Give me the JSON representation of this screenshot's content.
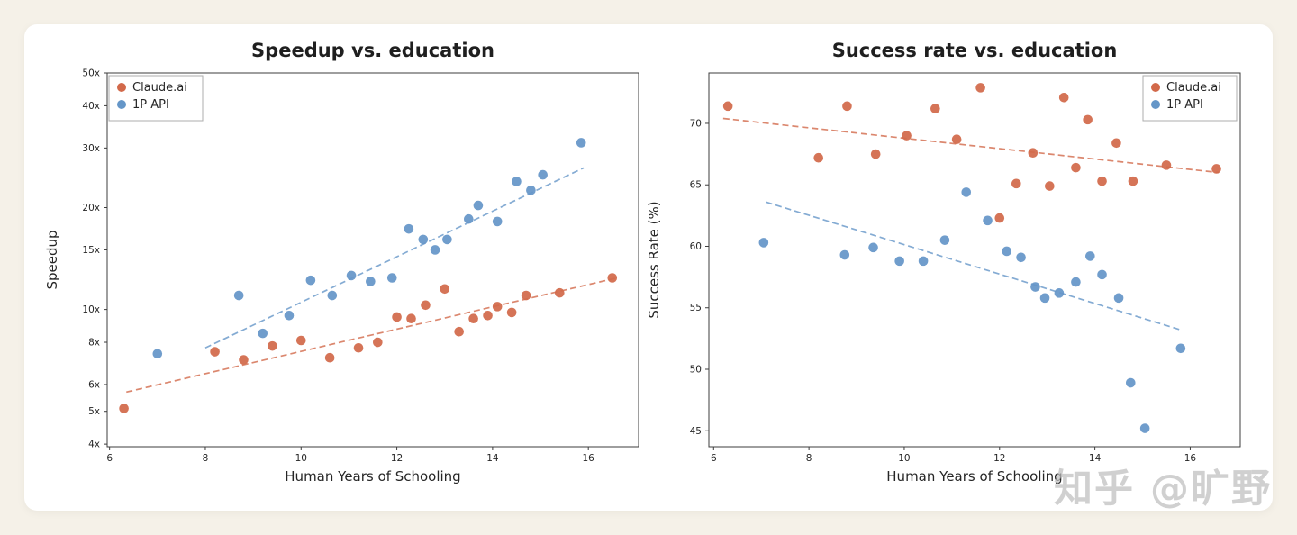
{
  "page": {
    "background_color": "#f5f1e8",
    "card_color": "#ffffff"
  },
  "watermark": {
    "text": "知乎 @旷野",
    "color": "#bebebe"
  },
  "colors": {
    "claude_ai": "#d2694a",
    "one_p_api": "#6596c8"
  },
  "chart_data": [
    {
      "type": "scatter",
      "title": "Speedup vs. education",
      "xlabel": "Human Years of Schooling",
      "ylabel": "Speedup",
      "x_ticks": [
        6,
        8,
        10,
        12,
        14,
        16
      ],
      "xlim": [
        5.95,
        17.05
      ],
      "y_scale": "log",
      "ylim": [
        3.93,
        50
      ],
      "y_ticks": [
        4,
        5,
        6,
        8,
        10,
        15,
        20,
        30,
        40,
        50
      ],
      "y_tick_labels": [
        "4x",
        "5x",
        "6x",
        "8x",
        "10x",
        "15x",
        "20x",
        "30x",
        "40x",
        "50x"
      ],
      "grid": false,
      "legend": {
        "position": "top-left",
        "entries": [
          "Claude.ai",
          "1P API"
        ]
      },
      "series": [
        {
          "name": "Claude.ai",
          "color": "#d2694a",
          "trend": [
            [
              6.35,
              5.7
            ],
            [
              16.6,
              12.4
            ]
          ],
          "points": [
            [
              6.3,
              5.1
            ],
            [
              8.2,
              7.5
            ],
            [
              8.8,
              7.1
            ],
            [
              9.4,
              7.8
            ],
            [
              10.0,
              8.1
            ],
            [
              10.6,
              7.2
            ],
            [
              11.2,
              7.7
            ],
            [
              11.6,
              8.0
            ],
            [
              12.0,
              9.5
            ],
            [
              12.3,
              9.4
            ],
            [
              12.6,
              10.3
            ],
            [
              13.0,
              11.5
            ],
            [
              13.3,
              8.6
            ],
            [
              13.6,
              9.4
            ],
            [
              13.9,
              9.6
            ],
            [
              14.1,
              10.2
            ],
            [
              14.4,
              9.8
            ],
            [
              14.7,
              11.0
            ],
            [
              15.4,
              11.2
            ],
            [
              16.5,
              12.4
            ]
          ]
        },
        {
          "name": "1P API",
          "color": "#6596c8",
          "trend": [
            [
              8.0,
              7.7
            ],
            [
              15.9,
              26.2
            ]
          ],
          "points": [
            [
              7.0,
              7.4
            ],
            [
              8.7,
              11.0
            ],
            [
              9.2,
              8.5
            ],
            [
              9.75,
              9.6
            ],
            [
              10.2,
              12.2
            ],
            [
              10.65,
              11.0
            ],
            [
              11.05,
              12.6
            ],
            [
              11.45,
              12.1
            ],
            [
              11.9,
              12.4
            ],
            [
              12.25,
              17.3
            ],
            [
              12.55,
              16.1
            ],
            [
              12.8,
              15.0
            ],
            [
              13.05,
              16.1
            ],
            [
              13.5,
              18.5
            ],
            [
              13.7,
              20.3
            ],
            [
              14.1,
              18.2
            ],
            [
              14.5,
              23.9
            ],
            [
              14.8,
              22.5
            ],
            [
              15.05,
              25.0
            ],
            [
              15.85,
              31.1
            ]
          ]
        }
      ]
    },
    {
      "type": "scatter",
      "title": "Success rate vs. education",
      "xlabel": "Human Years of Schooling",
      "ylabel": "Success Rate (%)",
      "x_ticks": [
        6,
        8,
        10,
        12,
        14,
        16
      ],
      "xlim": [
        5.9,
        17.05
      ],
      "y_scale": "linear",
      "ylim": [
        43.7,
        74.1
      ],
      "y_ticks": [
        45,
        50,
        55,
        60,
        65,
        70
      ],
      "y_tick_labels": [
        "45",
        "50",
        "55",
        "60",
        "65",
        "70"
      ],
      "grid": false,
      "legend": {
        "position": "top-right",
        "entries": [
          "Claude.ai",
          "1P API"
        ]
      },
      "series": [
        {
          "name": "Claude.ai",
          "color": "#d2694a",
          "trend": [
            [
              6.2,
              70.4
            ],
            [
              16.6,
              66.0
            ]
          ],
          "points": [
            [
              6.3,
              71.4
            ],
            [
              8.2,
              67.2
            ],
            [
              8.8,
              71.4
            ],
            [
              9.4,
              67.5
            ],
            [
              10.05,
              69.0
            ],
            [
              10.65,
              71.2
            ],
            [
              11.1,
              68.7
            ],
            [
              11.6,
              72.9
            ],
            [
              12.0,
              62.3
            ],
            [
              12.35,
              65.1
            ],
            [
              12.7,
              67.6
            ],
            [
              13.05,
              64.9
            ],
            [
              13.35,
              72.1
            ],
            [
              13.6,
              66.4
            ],
            [
              13.85,
              70.3
            ],
            [
              14.15,
              65.3
            ],
            [
              14.45,
              68.4
            ],
            [
              14.8,
              65.3
            ],
            [
              15.5,
              66.6
            ],
            [
              16.55,
              66.3
            ]
          ]
        },
        {
          "name": "1P API",
          "color": "#6596c8",
          "trend": [
            [
              7.1,
              63.6
            ],
            [
              15.8,
              53.2
            ]
          ],
          "points": [
            [
              7.05,
              60.3
            ],
            [
              8.75,
              59.3
            ],
            [
              9.35,
              59.9
            ],
            [
              9.9,
              58.8
            ],
            [
              10.4,
              58.8
            ],
            [
              10.85,
              60.5
            ],
            [
              11.3,
              64.4
            ],
            [
              11.75,
              62.1
            ],
            [
              12.15,
              59.6
            ],
            [
              12.45,
              59.1
            ],
            [
              12.75,
              56.7
            ],
            [
              12.95,
              55.8
            ],
            [
              13.25,
              56.2
            ],
            [
              13.6,
              57.1
            ],
            [
              13.9,
              59.2
            ],
            [
              14.15,
              57.7
            ],
            [
              14.5,
              55.8
            ],
            [
              14.75,
              48.9
            ],
            [
              15.05,
              45.2
            ],
            [
              15.8,
              51.7
            ]
          ]
        }
      ]
    }
  ]
}
